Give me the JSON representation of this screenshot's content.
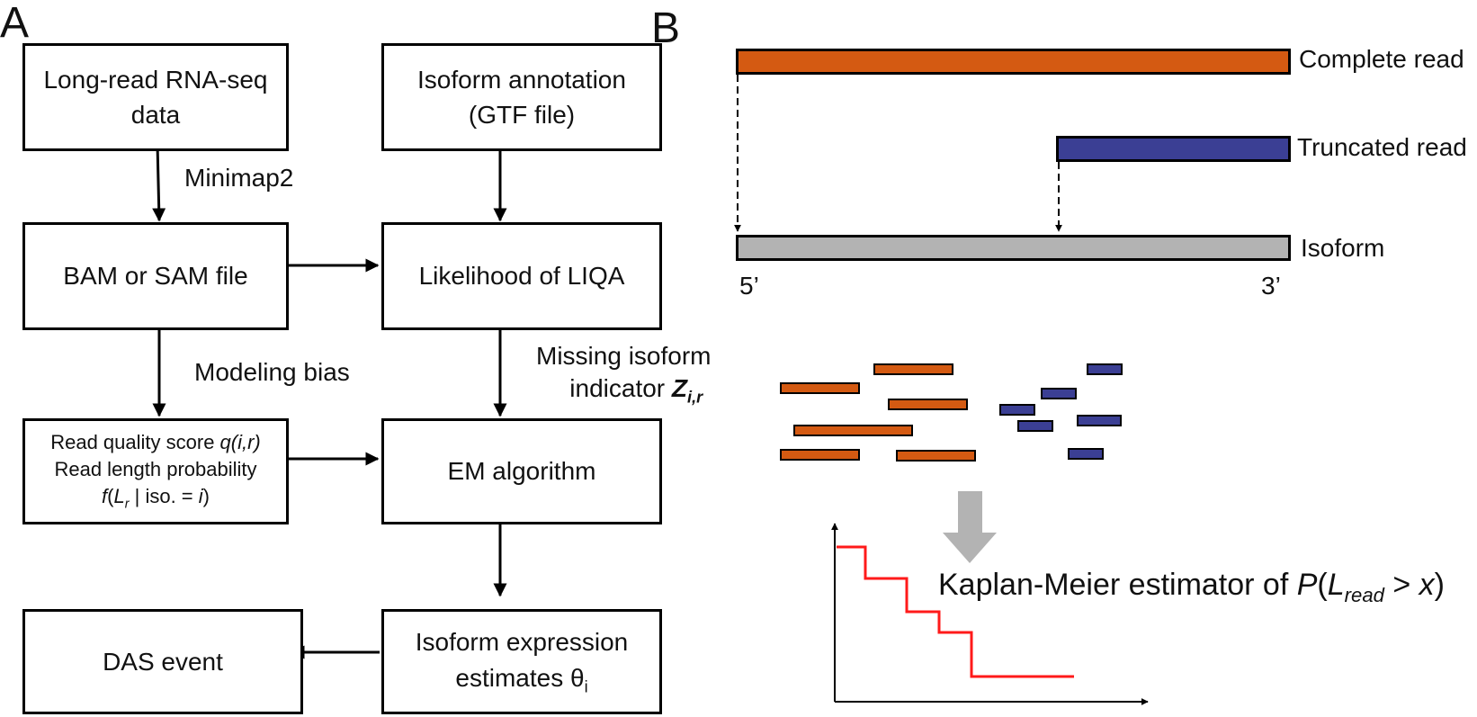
{
  "panel_a": {
    "label": "A",
    "boxes": {
      "long_read_line1": "Long-read RNA-seq",
      "long_read_line2": "data",
      "isoform_annot_line1": "Isoform annotation",
      "isoform_annot_line2": "(GTF file)",
      "bam_sam": "BAM or SAM file",
      "likelihood": "Likelihood of LIQA",
      "quality_line1_prefix": "Read quality score ",
      "quality_line1_italic": "q(i,r)",
      "quality_line2": "Read length probability",
      "quality_line3_f": "f",
      "quality_line3_open": "(",
      "quality_line3_L": "L",
      "quality_line3_sub": "r",
      "quality_line3_mid": " | iso. = ",
      "quality_line3_i": "i",
      "quality_line3_close": ")",
      "em": "EM algorithm",
      "das": "DAS event",
      "iso_expr_line1": "Isoform expression",
      "iso_expr_line2": "estimates θ",
      "iso_expr_sub": "i"
    },
    "edge_labels": {
      "minimap2": "Minimap2",
      "modeling_bias": "Modeling bias",
      "missing_line1": "Missing isoform",
      "missing_line2": "indicator ",
      "missing_Z": "Z",
      "missing_sub": "i,r"
    }
  },
  "panel_b": {
    "label": "B",
    "complete_read": "Complete read",
    "truncated_read": "Truncated read",
    "isoform": "Isoform",
    "five_prime": "5’",
    "three_prime": "3’",
    "km_prefix": "Kaplan-Meier estimator of ",
    "km_P": "P",
    "km_open": "(",
    "km_L": "L",
    "km_sub": "read",
    "km_rest": " > ",
    "km_x": "x",
    "km_close": ")"
  },
  "colors": {
    "orange": "#d45a12",
    "blue": "#3b3f94",
    "gray": "#b3b3b3",
    "red": "#ff1a1a",
    "big_arrow": "#b3b3b3"
  }
}
